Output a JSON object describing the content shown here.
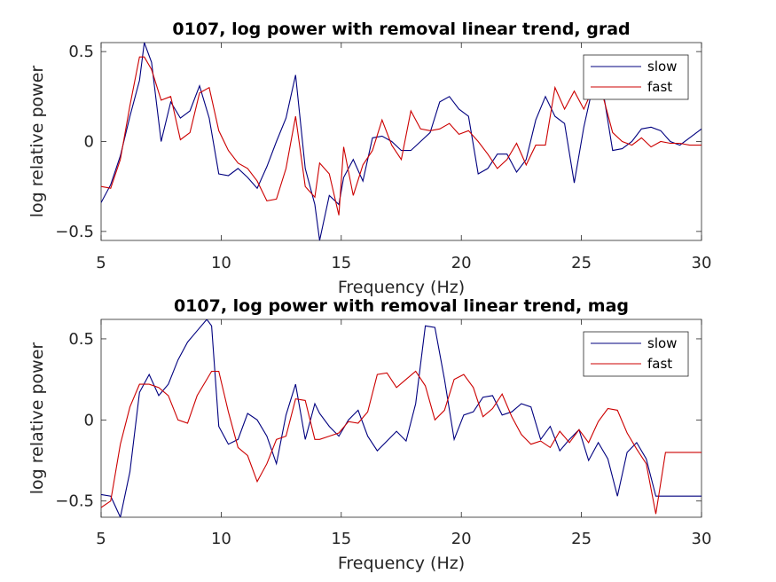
{
  "chart_data": [
    {
      "type": "line",
      "title": "0107, log power with removal linear trend, grad",
      "xlabel": "Frequency (Hz)",
      "ylabel": "log relative power",
      "xlim": [
        5,
        30
      ],
      "ylim": [
        -0.55,
        0.55
      ],
      "xticks": [
        5,
        10,
        15,
        20,
        25,
        30
      ],
      "xtick_labels": [
        "5",
        "10",
        "15",
        "20",
        "25",
        "30"
      ],
      "yticks": [
        -0.5,
        0,
        0.5
      ],
      "ytick_labels": [
        "−0.5",
        "0",
        "0.5"
      ],
      "grid": false,
      "legend_position": "top-right",
      "series": [
        {
          "name": "slow",
          "color": "#00007f",
          "x": [
            5,
            5.4,
            5.8,
            6.2,
            6.6,
            6.8,
            7.1,
            7.5,
            7.9,
            8.3,
            8.7,
            9.1,
            9.5,
            9.9,
            10.3,
            10.7,
            11.1,
            11.5,
            11.9,
            12.3,
            12.7,
            13.1,
            13.5,
            13.9,
            14.1,
            14.5,
            14.9,
            15.1,
            15.5,
            15.9,
            16.3,
            16.7,
            17.1,
            17.5,
            17.9,
            18.3,
            18.7,
            19.1,
            19.5,
            19.9,
            20.3,
            20.7,
            21.1,
            21.5,
            21.9,
            22.3,
            22.7,
            23.1,
            23.5,
            23.9,
            24.3,
            24.7,
            25.1,
            25.5,
            25.9,
            26.3,
            26.7,
            27.1,
            27.5,
            27.9,
            28.3,
            28.7,
            29.1,
            29.5,
            30
          ],
          "y": [
            -0.34,
            -0.24,
            -0.08,
            0.14,
            0.34,
            0.55,
            0.44,
            0.0,
            0.22,
            0.13,
            0.17,
            0.31,
            0.13,
            -0.18,
            -0.19,
            -0.15,
            -0.2,
            -0.26,
            -0.14,
            0.0,
            0.13,
            0.37,
            -0.15,
            -0.35,
            -0.55,
            -0.3,
            -0.35,
            -0.2,
            -0.1,
            -0.22,
            0.02,
            0.03,
            0.0,
            -0.05,
            -0.05,
            0.0,
            0.05,
            0.22,
            0.25,
            0.18,
            0.14,
            -0.18,
            -0.15,
            -0.07,
            -0.07,
            -0.17,
            -0.1,
            0.12,
            0.25,
            0.14,
            0.1,
            -0.23,
            0.08,
            0.32,
            0.28,
            -0.05,
            -0.04,
            0.0,
            0.07,
            0.08,
            0.06,
            0.0,
            -0.02,
            0.02,
            0.07
          ]
        },
        {
          "name": "fast",
          "color": "#cc0000",
          "x": [
            5,
            5.4,
            5.8,
            6.2,
            6.6,
            6.8,
            7.1,
            7.5,
            7.9,
            8.3,
            8.7,
            9.1,
            9.5,
            9.9,
            10.3,
            10.7,
            11.1,
            11.5,
            11.9,
            12.3,
            12.7,
            13.1,
            13.5,
            13.9,
            14.1,
            14.5,
            14.9,
            15.1,
            15.5,
            15.9,
            16.3,
            16.7,
            17.1,
            17.5,
            17.9,
            18.3,
            18.7,
            19.1,
            19.5,
            19.9,
            20.3,
            20.7,
            21.1,
            21.5,
            21.9,
            22.3,
            22.7,
            23.1,
            23.5,
            23.9,
            24.3,
            24.7,
            25.1,
            25.5,
            25.9,
            26.3,
            26.7,
            27.1,
            27.5,
            27.9,
            28.3,
            28.7,
            29.1,
            29.5,
            30
          ],
          "y": [
            -0.25,
            -0.26,
            -0.1,
            0.2,
            0.47,
            0.47,
            0.4,
            0.23,
            0.25,
            0.01,
            0.05,
            0.27,
            0.3,
            0.06,
            -0.05,
            -0.12,
            -0.15,
            -0.22,
            -0.33,
            -0.32,
            -0.15,
            0.14,
            -0.25,
            -0.31,
            -0.12,
            -0.18,
            -0.41,
            -0.03,
            -0.3,
            -0.13,
            -0.05,
            0.12,
            -0.02,
            -0.1,
            0.17,
            0.07,
            0.06,
            0.07,
            0.1,
            0.04,
            0.06,
            0.0,
            -0.07,
            -0.15,
            -0.1,
            -0.01,
            -0.13,
            -0.02,
            -0.02,
            0.3,
            0.18,
            0.28,
            0.18,
            0.3,
            0.25,
            0.05,
            0.0,
            -0.02,
            0.02,
            -0.03,
            0.0,
            -0.01,
            -0.01,
            -0.02,
            -0.02
          ]
        }
      ]
    },
    {
      "type": "line",
      "title": "0107, log power with removal linear trend, mag",
      "xlabel": "Frequency (Hz)",
      "ylabel": "log relative power",
      "xlim": [
        5,
        30
      ],
      "ylim": [
        -0.6,
        0.62
      ],
      "xticks": [
        5,
        10,
        15,
        20,
        25,
        30
      ],
      "xtick_labels": [
        "5",
        "10",
        "15",
        "20",
        "25",
        "30"
      ],
      "yticks": [
        -0.5,
        0,
        0.5
      ],
      "ytick_labels": [
        "−0.5",
        "0",
        "0.5"
      ],
      "grid": false,
      "legend_position": "top-right",
      "series": [
        {
          "name": "slow",
          "color": "#00007f",
          "x": [
            5,
            5.4,
            5.8,
            6.2,
            6.6,
            7.0,
            7.4,
            7.8,
            8.2,
            8.6,
            9.0,
            9.4,
            9.6,
            9.9,
            10.3,
            10.7,
            11.1,
            11.5,
            11.9,
            12.3,
            12.7,
            13.1,
            13.5,
            13.9,
            14.1,
            14.5,
            14.9,
            15.3,
            15.7,
            16.1,
            16.5,
            16.9,
            17.3,
            17.7,
            18.1,
            18.5,
            18.9,
            19.3,
            19.7,
            20.1,
            20.5,
            20.9,
            21.3,
            21.7,
            22.1,
            22.5,
            22.9,
            23.3,
            23.7,
            24.1,
            24.5,
            24.9,
            25.3,
            25.7,
            26.1,
            26.5,
            26.9,
            27.3,
            27.7,
            28.1,
            28.5,
            28.9,
            29.3,
            29.7,
            30
          ],
          "y": [
            -0.46,
            -0.47,
            -0.6,
            -0.32,
            0.17,
            0.28,
            0.15,
            0.22,
            0.37,
            0.48,
            0.55,
            0.62,
            0.58,
            -0.04,
            -0.15,
            -0.12,
            0.04,
            0.0,
            -0.1,
            -0.27,
            0.03,
            0.22,
            -0.12,
            0.1,
            0.04,
            -0.04,
            -0.1,
            0.0,
            0.06,
            -0.1,
            -0.19,
            -0.13,
            -0.07,
            -0.13,
            0.1,
            0.58,
            0.57,
            0.25,
            -0.12,
            0.03,
            0.05,
            0.14,
            0.15,
            0.03,
            0.05,
            0.1,
            0.08,
            -0.12,
            -0.04,
            -0.19,
            -0.12,
            -0.06,
            -0.25,
            -0.14,
            -0.24,
            -0.47,
            -0.2,
            -0.14,
            -0.24,
            -0.47,
            -0.47,
            -0.47,
            -0.47,
            -0.47,
            -0.47
          ]
        },
        {
          "name": "fast",
          "color": "#cc0000",
          "x": [
            5,
            5.4,
            5.8,
            6.2,
            6.6,
            7.0,
            7.4,
            7.8,
            8.2,
            8.6,
            9.0,
            9.4,
            9.6,
            9.9,
            10.3,
            10.7,
            11.1,
            11.5,
            11.9,
            12.3,
            12.7,
            13.1,
            13.5,
            13.9,
            14.1,
            14.5,
            14.9,
            15.3,
            15.7,
            16.1,
            16.5,
            16.9,
            17.3,
            17.7,
            18.1,
            18.5,
            18.9,
            19.3,
            19.7,
            20.1,
            20.5,
            20.9,
            21.3,
            21.7,
            22.1,
            22.5,
            22.9,
            23.3,
            23.7,
            24.1,
            24.5,
            24.9,
            25.3,
            25.7,
            26.1,
            26.5,
            26.9,
            27.3,
            27.7,
            28.1,
            28.5,
            28.9,
            29.3,
            29.7,
            30
          ],
          "y": [
            -0.54,
            -0.5,
            -0.15,
            0.08,
            0.22,
            0.22,
            0.2,
            0.15,
            0.0,
            -0.02,
            0.15,
            0.25,
            0.3,
            0.3,
            0.05,
            -0.17,
            -0.22,
            -0.38,
            -0.27,
            -0.12,
            -0.1,
            0.13,
            0.12,
            -0.12,
            -0.12,
            -0.1,
            -0.08,
            -0.01,
            -0.02,
            0.05,
            0.28,
            0.29,
            0.2,
            0.25,
            0.3,
            0.21,
            0.0,
            0.06,
            0.25,
            0.28,
            0.2,
            0.02,
            0.07,
            0.16,
            0.02,
            -0.09,
            -0.15,
            -0.13,
            -0.17,
            -0.07,
            -0.14,
            -0.06,
            -0.14,
            -0.01,
            0.07,
            0.06,
            -0.08,
            -0.18,
            -0.27,
            -0.58,
            -0.2,
            -0.2,
            -0.2,
            -0.2,
            -0.2
          ]
        }
      ]
    }
  ]
}
